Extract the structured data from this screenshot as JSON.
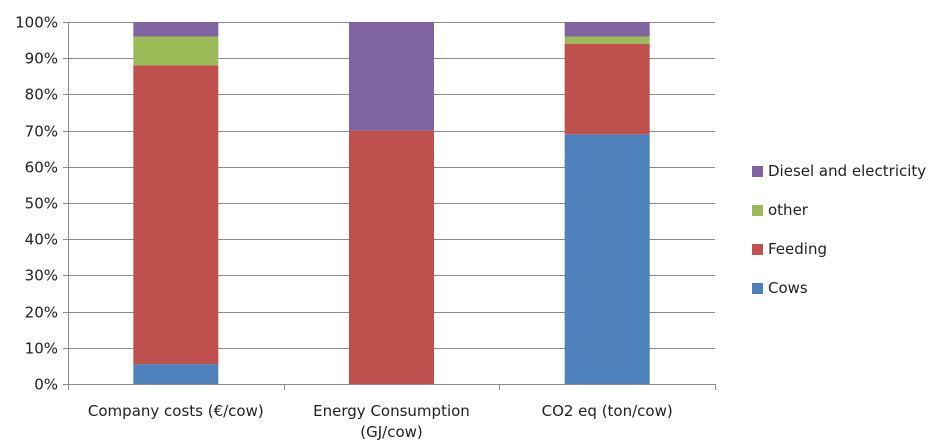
{
  "chart_data": {
    "type": "bar",
    "stacked": true,
    "percent_stacked": true,
    "categories": [
      [
        "Company costs (€/cow)"
      ],
      [
        "Energy Consumption",
        "(GJ/cow)"
      ],
      [
        "CO2 eq (ton/cow)"
      ]
    ],
    "series": [
      {
        "name": "Cows",
        "color": "#4f81bd",
        "values": [
          5.5,
          0,
          69
        ]
      },
      {
        "name": "Feeding",
        "color": "#c0504d",
        "values": [
          82.5,
          70,
          25
        ]
      },
      {
        "name": "other",
        "color": "#9bbb59",
        "values": [
          8,
          0,
          2
        ]
      },
      {
        "name": "Diesel and electricity",
        "color": "#8064a2",
        "values": [
          4,
          30,
          4
        ]
      }
    ],
    "y_ticks": [
      "0%",
      "10%",
      "20%",
      "30%",
      "40%",
      "50%",
      "60%",
      "70%",
      "80%",
      "90%",
      "100%"
    ],
    "ylim": [
      0,
      100
    ],
    "grid": true,
    "legend": {
      "placement": "right",
      "order": [
        "Diesel and electricity",
        "other",
        "Feeding",
        "Cows"
      ]
    }
  }
}
